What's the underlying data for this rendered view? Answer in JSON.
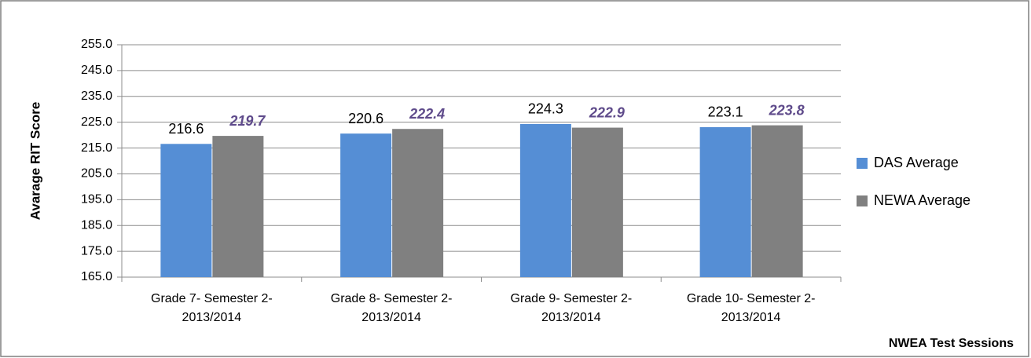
{
  "chart_data": {
    "type": "bar",
    "categories": [
      "Grade 7- Semester 2- 2013/2014",
      "Grade 8- Semester 2- 2013/2014",
      "Grade 9- Semester 2- 2013/2014",
      "Grade 10- Semester 2- 2013/2014"
    ],
    "series": [
      {
        "name": "DAS Average",
        "color": "#558ed5",
        "values": [
          216.6,
          220.6,
          224.3,
          223.1
        ]
      },
      {
        "name": "NEWA Average",
        "color": "#808080",
        "values": [
          219.7,
          222.4,
          222.9,
          223.8
        ]
      }
    ],
    "y_label": "Avarage RIT Score",
    "x_label": "NWEA Test Sessions",
    "ylim": [
      165,
      255
    ],
    "yticks": [
      {
        "value": 165,
        "label": "165.0"
      },
      {
        "value": 175,
        "label": "175.0"
      },
      {
        "value": 185,
        "label": "185.0"
      },
      {
        "value": 195,
        "label": "195.0"
      },
      {
        "value": 205,
        "label": "205.0"
      },
      {
        "value": 215,
        "label": "215.0"
      },
      {
        "value": 225,
        "label": "225.0"
      },
      {
        "value": 235,
        "label": "235.0"
      },
      {
        "value": 245,
        "label": "245.0"
      },
      {
        "value": 255,
        "label": "255.0"
      }
    ],
    "grid": true,
    "legend": "right"
  }
}
